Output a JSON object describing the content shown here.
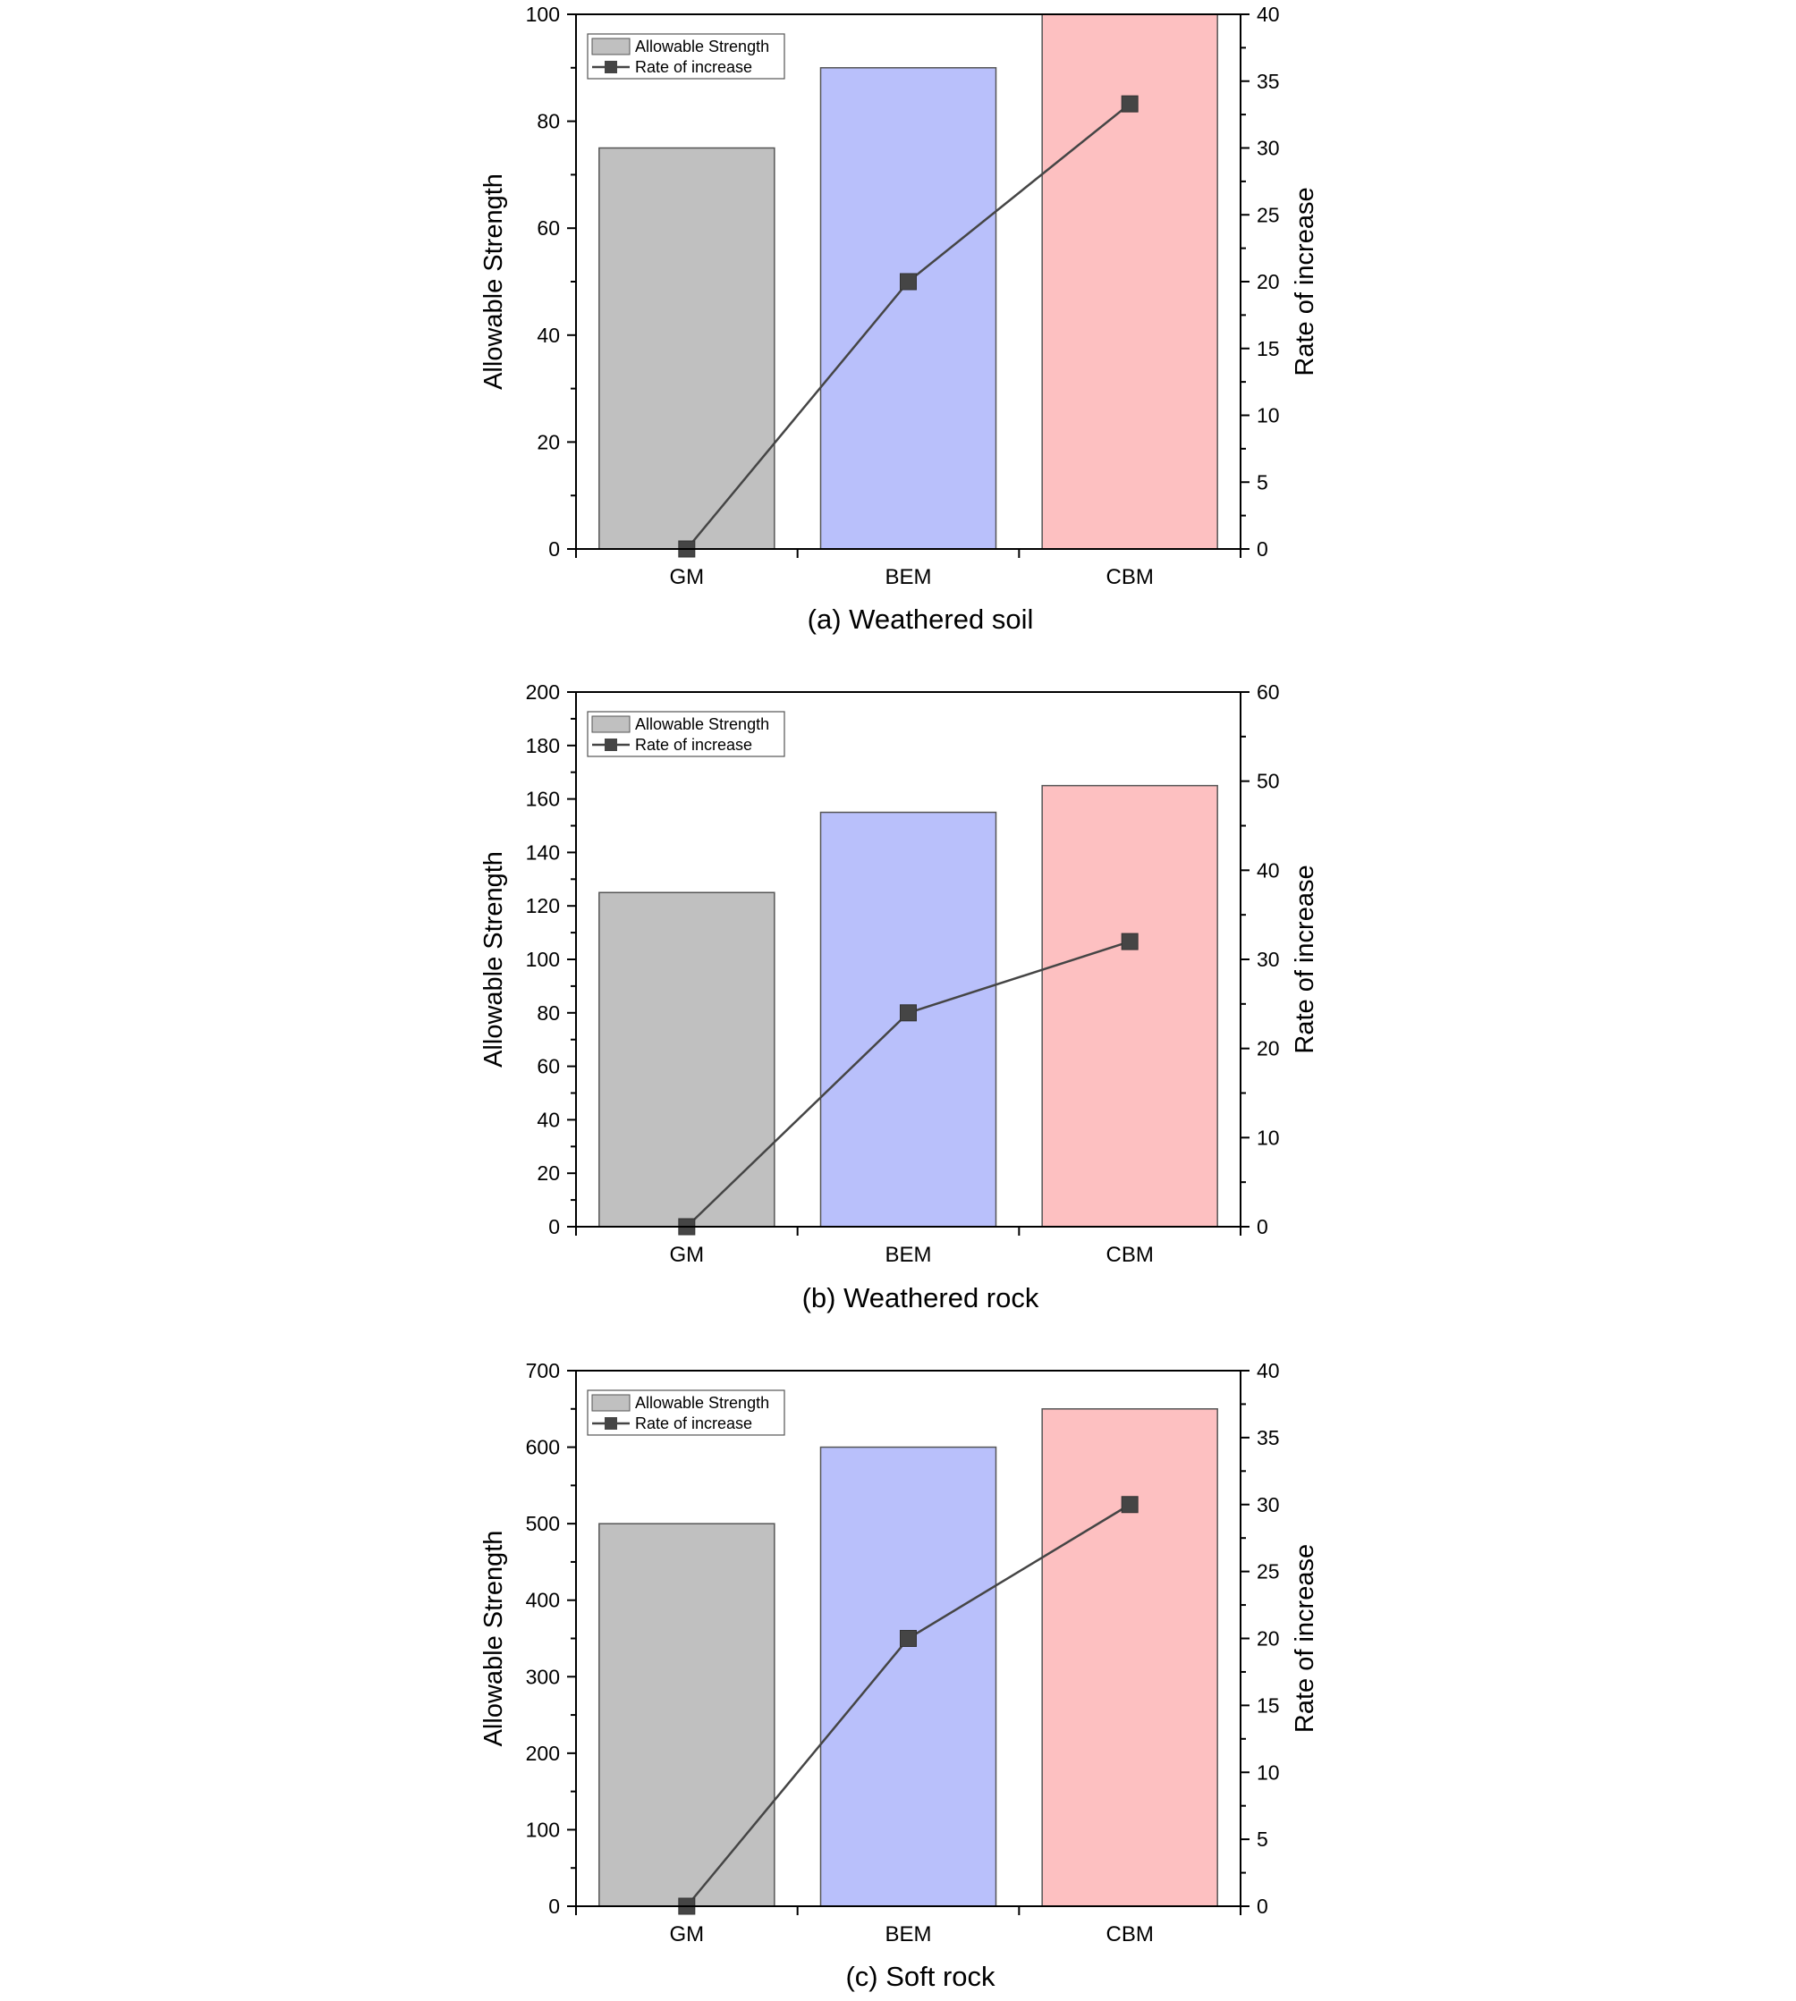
{
  "chart_data": [
    {
      "type": "bar",
      "caption": "(a)  Weathered soil",
      "categories": [
        "GM",
        "BEM",
        "CBM"
      ],
      "bar_colors": [
        "#c0c0c0",
        "#b9c0fb",
        "#fdc0c1"
      ],
      "line_color": "#454545",
      "ylabel": "Allowable Strength",
      "y2label": "Rate of increase",
      "ylim": [
        0,
        100
      ],
      "yticks": [
        0,
        20,
        40,
        60,
        80,
        100
      ],
      "y2lim": [
        0,
        40
      ],
      "y2ticks": [
        0,
        5,
        10,
        15,
        20,
        25,
        30,
        35,
        40
      ],
      "legend": {
        "position": "top-left",
        "entries": [
          "Allowable Strength",
          "Rate of increase"
        ]
      },
      "series": [
        {
          "name": "Allowable Strength",
          "axis": "left",
          "kind": "bar",
          "values": [
            75,
            90,
            100
          ]
        },
        {
          "name": "Rate of increase",
          "axis": "right",
          "kind": "line",
          "marker": "square",
          "values": [
            0,
            20,
            33.3
          ]
        }
      ]
    },
    {
      "type": "bar",
      "caption": "(b)  Weathered  rock",
      "categories": [
        "GM",
        "BEM",
        "CBM"
      ],
      "bar_colors": [
        "#c0c0c0",
        "#b9c0fb",
        "#fdc0c1"
      ],
      "line_color": "#454545",
      "ylabel": "Allowable Strength",
      "y2label": "Rate of increase",
      "ylim": [
        0,
        200
      ],
      "yticks": [
        0,
        20,
        40,
        60,
        80,
        100,
        120,
        140,
        160,
        180,
        200
      ],
      "y2lim": [
        0,
        60
      ],
      "y2ticks": [
        0,
        10,
        20,
        30,
        40,
        50,
        60
      ],
      "legend": {
        "position": "top-left",
        "entries": [
          "Allowable Strength",
          "Rate of increase"
        ]
      },
      "series": [
        {
          "name": "Allowable Strength",
          "axis": "left",
          "kind": "bar",
          "values": [
            125,
            155,
            165
          ]
        },
        {
          "name": "Rate of increase",
          "axis": "right",
          "kind": "line",
          "marker": "square",
          "values": [
            0,
            24,
            32
          ]
        }
      ]
    },
    {
      "type": "bar",
      "caption": "(c)  Soft  rock",
      "categories": [
        "GM",
        "BEM",
        "CBM"
      ],
      "bar_colors": [
        "#c0c0c0",
        "#b9c0fb",
        "#fdc0c1"
      ],
      "line_color": "#454545",
      "ylabel": "Allowable Strength",
      "y2label": "Rate of increase",
      "ylim": [
        0,
        700
      ],
      "yticks": [
        0,
        100,
        200,
        300,
        400,
        500,
        600,
        700
      ],
      "y2lim": [
        0,
        40
      ],
      "y2ticks": [
        0,
        5,
        10,
        15,
        20,
        25,
        30,
        35,
        40
      ],
      "legend": {
        "position": "top-left",
        "entries": [
          "Allowable Strength",
          "Rate of increase"
        ]
      },
      "series": [
        {
          "name": "Allowable Strength",
          "axis": "left",
          "kind": "bar",
          "values": [
            500,
            600,
            650
          ]
        },
        {
          "name": "Rate of increase",
          "axis": "right",
          "kind": "line",
          "marker": "square",
          "values": [
            0,
            20,
            30
          ]
        }
      ]
    }
  ]
}
